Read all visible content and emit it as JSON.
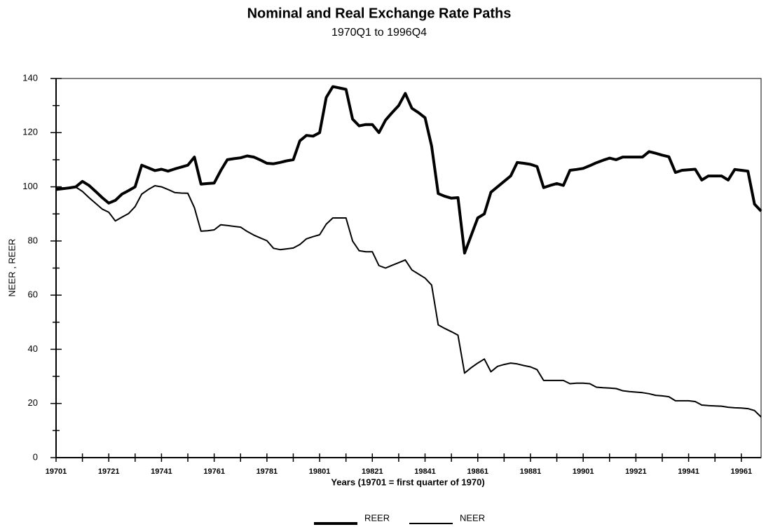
{
  "chart_data": {
    "type": "line",
    "title": "Nominal and Real Exchange Rate Paths",
    "subtitle": "1970Q1 to 1996Q4",
    "x_label": "Years (19701 = first quarter of 1970)",
    "y_label": "NEER , REER",
    "categories": [
      "19701",
      null,
      null,
      null,
      null,
      null,
      null,
      null,
      "19721",
      null,
      null,
      null,
      null,
      null,
      null,
      null,
      "19741",
      null,
      null,
      null,
      null,
      null,
      null,
      null,
      "19761",
      null,
      null,
      null,
      null,
      null,
      null,
      null,
      "19781",
      null,
      null,
      null,
      null,
      null,
      null,
      null,
      "19801",
      null,
      null,
      null,
      null,
      null,
      null,
      null,
      "19821",
      null,
      null,
      null,
      null,
      null,
      null,
      null,
      "19841",
      null,
      null,
      null,
      null,
      null,
      null,
      null,
      "19861",
      null,
      null,
      null,
      null,
      null,
      null,
      null,
      "19881",
      null,
      null,
      null,
      null,
      null,
      null,
      null,
      "19901",
      null,
      null,
      null,
      null,
      null,
      null,
      null,
      "19921",
      null,
      null,
      null,
      null,
      null,
      null,
      null,
      "19941",
      null,
      null,
      null,
      null,
      null,
      null,
      null,
      "19961",
      null,
      null,
      null
    ],
    "series": [
      {
        "name": "REER",
        "color": "#000000",
        "linewidth": 4,
        "values": [
          99,
          99.3,
          99.6,
          100,
          102,
          100.5,
          98.3,
          96,
          94,
          95,
          97.3,
          98.6,
          100,
          108,
          107,
          106,
          106.5,
          105.8,
          106.6,
          107.3,
          108,
          111,
          101,
          101.2,
          101.4,
          106,
          110,
          110.4,
          110.7,
          111.4,
          111,
          109.9,
          108.7,
          108.5,
          109,
          109.6,
          110,
          117,
          119,
          118.7,
          120,
          133,
          137,
          136.5,
          136,
          125,
          122.5,
          123,
          123,
          120,
          124.6,
          127.4,
          130,
          134.5,
          129,
          127.4,
          125.5,
          115,
          97.5,
          96.5,
          95.8,
          96,
          75.5,
          82,
          88.5,
          90,
          98,
          100,
          102,
          104,
          109,
          108.7,
          108.3,
          107.5,
          99.7,
          100.5,
          101.2,
          100.5,
          106.1,
          106.4,
          106.8,
          107.8,
          108.9,
          109.8,
          110.6,
          110,
          111,
          111,
          111,
          111,
          113,
          112.4,
          111.7,
          111.1,
          105.3,
          106.1,
          106.3,
          106.5,
          102.5,
          104,
          104,
          104,
          102.5,
          106.4,
          106.1,
          105.8,
          93.6,
          91
        ]
      },
      {
        "name": "NEER",
        "color": "#000000",
        "linewidth": 2,
        "values": [
          99.5,
          99.6,
          99.7,
          99.9,
          98.3,
          96,
          93.9,
          91.8,
          90.6,
          87.4,
          88.8,
          90.1,
          92.7,
          97.3,
          99,
          100.4,
          100,
          99,
          97.9,
          97.7,
          97.6,
          92.3,
          83.6,
          83.8,
          84.1,
          86,
          85.7,
          85.4,
          85.1,
          83.5,
          82.2,
          81.1,
          80.1,
          77.3,
          76.8,
          77.1,
          77.4,
          78.7,
          80.8,
          81.6,
          82.3,
          86.2,
          88.5,
          88.5,
          88.5,
          80,
          76.4,
          76,
          76,
          70.9,
          70,
          71,
          72,
          73,
          69.3,
          67.8,
          66.3,
          63.7,
          49,
          47.7,
          46.5,
          45.2,
          31.2,
          33.2,
          34.9,
          36.4,
          31.7,
          33.7,
          34.4,
          34.9,
          34.6,
          34,
          33.5,
          32.5,
          28.5,
          28.5,
          28.5,
          28.5,
          27.3,
          27.5,
          27.5,
          27.3,
          26,
          25.8,
          25.7,
          25.5,
          24.7,
          24.4,
          24.2,
          24,
          23.6,
          23,
          22.8,
          22.5,
          21,
          21,
          21,
          20.7,
          19.4,
          19.2,
          19.1,
          19,
          18.6,
          18.4,
          18.3,
          18.1,
          17.4,
          15
        ]
      }
    ],
    "ylim": [
      0,
      140
    ],
    "yticks": [
      0,
      20,
      40,
      60,
      80,
      100,
      120,
      140
    ],
    "legend": "bottom"
  }
}
